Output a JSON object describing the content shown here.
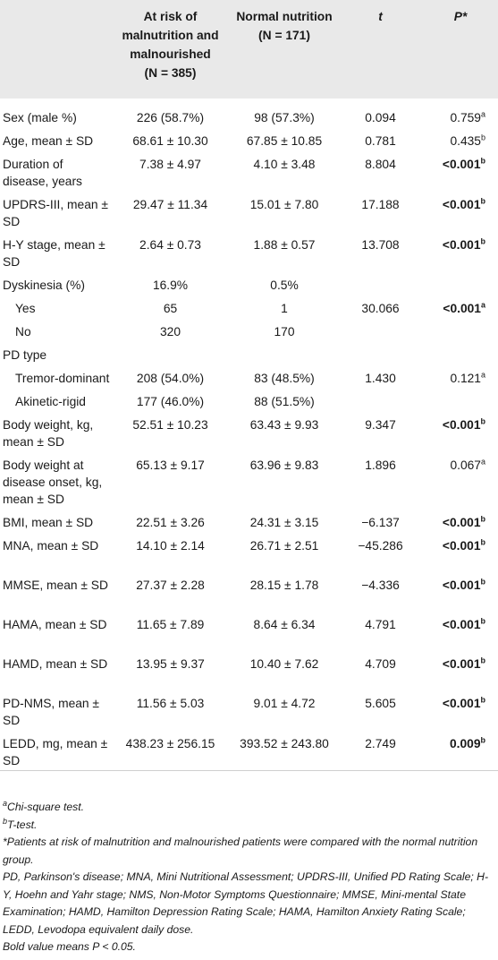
{
  "header": {
    "col1": "At risk of malnutrition and malnourished",
    "col1_n": "(N = 385)",
    "col2": "Normal nutrition",
    "col2_n": "(N = 171)",
    "col3": "t",
    "col4": "P*"
  },
  "rows": [
    {
      "label": "Sex (male %)",
      "a": "226 (58.7%)",
      "b": "98 (57.3%)",
      "t": "0.094",
      "p": "0.759",
      "sup": "a",
      "bold": false
    },
    {
      "label": "Age, mean ± SD",
      "a": "68.61 ± 10.30",
      "b": "67.85 ± 10.85",
      "t": "0.781",
      "p": "0.435",
      "sup": "b",
      "bold": false
    },
    {
      "label": "Duration of disease, years",
      "a": "7.38 ± 4.97",
      "b": "4.10 ± 3.48",
      "t": "8.804",
      "p": "<0.001",
      "sup": "b",
      "bold": true
    },
    {
      "label": "UPDRS-III, mean ± SD",
      "a": "29.47 ± 11.34",
      "b": "15.01 ± 7.80",
      "t": "17.188",
      "p": "<0.001",
      "sup": "b",
      "bold": true
    },
    {
      "label": "H-Y stage, mean ± SD",
      "a": "2.64 ± 0.73",
      "b": "1.88 ± 0.57",
      "t": "13.708",
      "p": "<0.001",
      "sup": "b",
      "bold": true
    },
    {
      "label": "Dyskinesia (%)",
      "a": "16.9%",
      "b": "0.5%",
      "t": "",
      "p": "",
      "sup": "",
      "bold": false
    },
    {
      "label": "Yes",
      "a": "65",
      "b": "1",
      "t": "30.066",
      "p": "<0.001",
      "sup": "a",
      "bold": true
    },
    {
      "label": "No",
      "a": "320",
      "b": "170",
      "t": "",
      "p": "",
      "sup": "",
      "bold": false
    },
    {
      "label": "PD type",
      "a": "",
      "b": "",
      "t": "",
      "p": "",
      "sup": "",
      "bold": false
    },
    {
      "label": "Tremor-dominant",
      "a": "208 (54.0%)",
      "b": "83 (48.5%)",
      "t": "1.430",
      "p": "0.121",
      "sup": "a",
      "bold": false
    },
    {
      "label": "Akinetic-rigid",
      "a": "177 (46.0%)",
      "b": "88 (51.5%)",
      "t": "",
      "p": "",
      "sup": "",
      "bold": false
    },
    {
      "label": "Body weight, kg, mean ± SD",
      "a": "52.51 ± 10.23",
      "b": "63.43 ± 9.93",
      "t": "9.347",
      "p": "<0.001",
      "sup": "b",
      "bold": true
    },
    {
      "label": "Body weight at disease onset, kg, mean ± SD",
      "a": "65.13 ± 9.17",
      "b": "63.96 ± 9.83",
      "t": "1.896",
      "p": "0.067",
      "sup": "a",
      "bold": false
    },
    {
      "label": "BMI, mean ± SD",
      "a": "22.51 ± 3.26",
      "b": "24.31 ± 3.15",
      "t": "−6.137",
      "p": "<0.001",
      "sup": "b",
      "bold": true
    },
    {
      "label": "MNA, mean ± SD",
      "a": "14.10 ± 2.14",
      "b": "26.71 ± 2.51",
      "t": "−45.286",
      "p": "<0.001",
      "sup": "b",
      "bold": true
    },
    {
      "label": "MMSE, mean ± SD",
      "a": "27.37 ± 2.28",
      "b": "28.15 ± 1.78",
      "t": "−4.336",
      "p": "<0.001",
      "sup": "b",
      "bold": true
    },
    {
      "label": "HAMA, mean ± SD",
      "a": "11.65 ± 7.89",
      "b": "8.64 ± 6.34",
      "t": "4.791",
      "p": "<0.001",
      "sup": "b",
      "bold": true
    },
    {
      "label": "HAMD, mean ± SD",
      "a": "13.95 ± 9.37",
      "b": "10.40 ± 7.62",
      "t": "4.709",
      "p": "<0.001",
      "sup": "b",
      "bold": true
    },
    {
      "label": "PD-NMS, mean ± SD",
      "a": "11.56 ± 5.03",
      "b": "9.01 ± 4.72",
      "t": "5.605",
      "p": "<0.001",
      "sup": "b",
      "bold": true
    },
    {
      "label": "LEDD, mg, mean ± SD",
      "a": "438.23 ± 256.15",
      "b": "393.52 ± 243.80",
      "t": "2.749",
      "p": "0.009",
      "sup": "b",
      "bold": true
    }
  ],
  "footnotes": {
    "a_mark": "a",
    "a_text": "Chi-square test.",
    "b_mark": "b",
    "b_text": "T-test.",
    "star": "*Patients at risk of malnutrition and malnourished patients were compared with the normal nutrition group.",
    "abbrev": "PD, Parkinson's disease; MNA, Mini Nutritional Assessment; UPDRS-III, Unified PD Rating Scale; H-Y, Hoehn and Yahr stage; NMS, Non-Motor Symptoms Questionnaire; MMSE, Mini-mental State Examination; HAMD, Hamilton Depression Rating Scale; HAMA, Hamilton Anxiety Rating Scale; LEDD, Levodopa equivalent daily dose.",
    "bold": "Bold value means P < 0.05."
  }
}
